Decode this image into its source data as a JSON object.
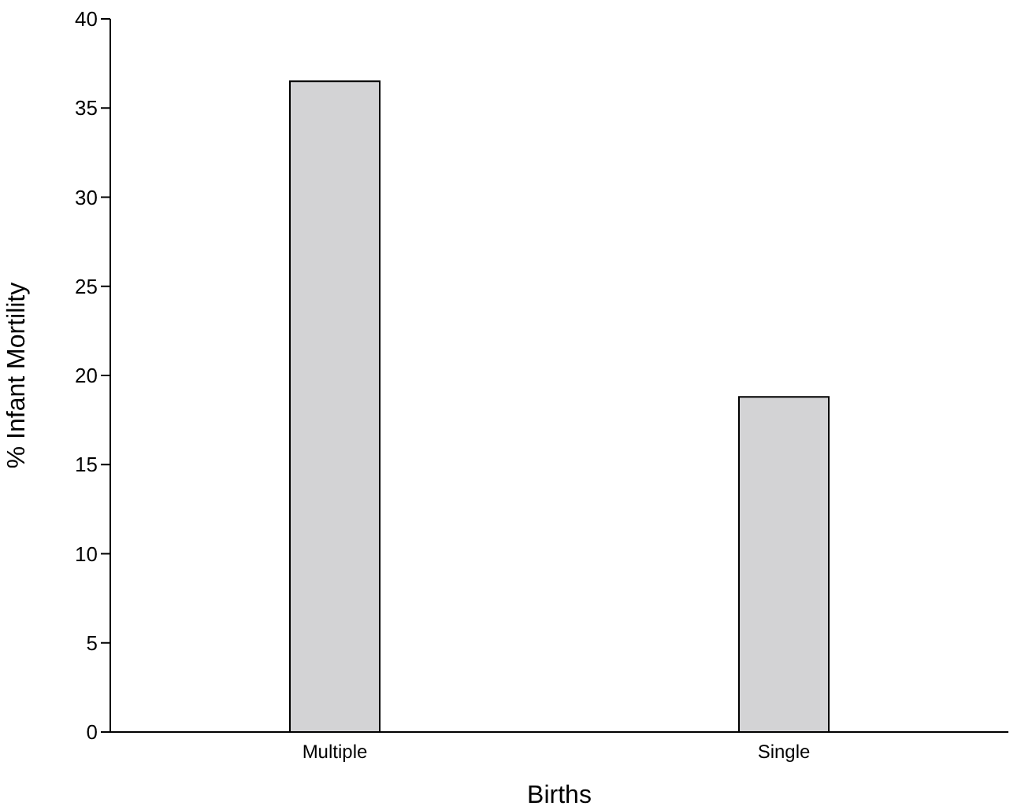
{
  "chart_data": {
    "type": "bar",
    "xlabel": "Births",
    "ylabel": "% Infant Mortility",
    "categories": [
      "Multiple",
      "Single"
    ],
    "values": [
      36.5,
      18.8
    ],
    "color": "#d3d3d5",
    "ylim": [
      0,
      40
    ],
    "yticks": [
      0,
      5,
      10,
      15,
      20,
      25,
      30,
      35,
      40
    ],
    "grid": false,
    "legend": false
  }
}
